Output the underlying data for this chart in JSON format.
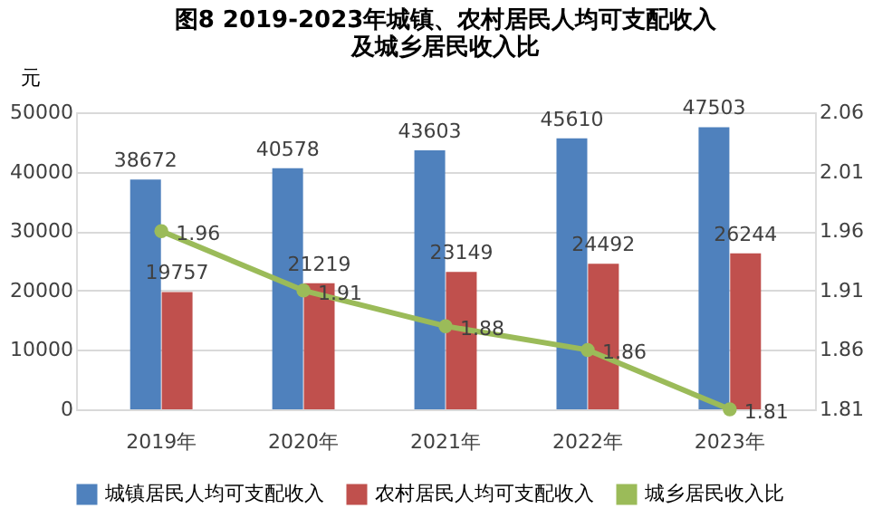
{
  "chart_data": {
    "type": "bar",
    "title": [
      "图8      2019-2023年城镇、农村居民人均可支配收入",
      "及城乡居民收入比"
    ],
    "ylabel": "元",
    "categories": [
      "2019年",
      "2020年",
      "2021年",
      "2022年",
      "2023年"
    ],
    "series": [
      {
        "name": "城镇居民人均可支配收入",
        "color": "#4f81bd",
        "values": [
          38672,
          40578,
          43603,
          45610,
          47503
        ]
      },
      {
        "name": "农村居民人均可支配收入",
        "color": "#c0504d",
        "values": [
          19757,
          21219,
          23149,
          24492,
          26244
        ]
      },
      {
        "name": "城乡居民收入比",
        "type": "line",
        "axis": "y2",
        "color": "#9bbb59",
        "values": [
          1.96,
          1.91,
          1.88,
          1.86,
          1.81
        ]
      }
    ],
    "ylim": [
      0,
      50000
    ],
    "yticks": [
      0,
      10000,
      20000,
      30000,
      40000,
      50000
    ],
    "y2lim": [
      1.81,
      2.06
    ],
    "y2ticks": [
      1.81,
      1.86,
      1.91,
      1.96,
      2.01,
      2.06
    ],
    "grid": "y",
    "legend": "bottom",
    "marker": "circle",
    "data_labels": true
  }
}
